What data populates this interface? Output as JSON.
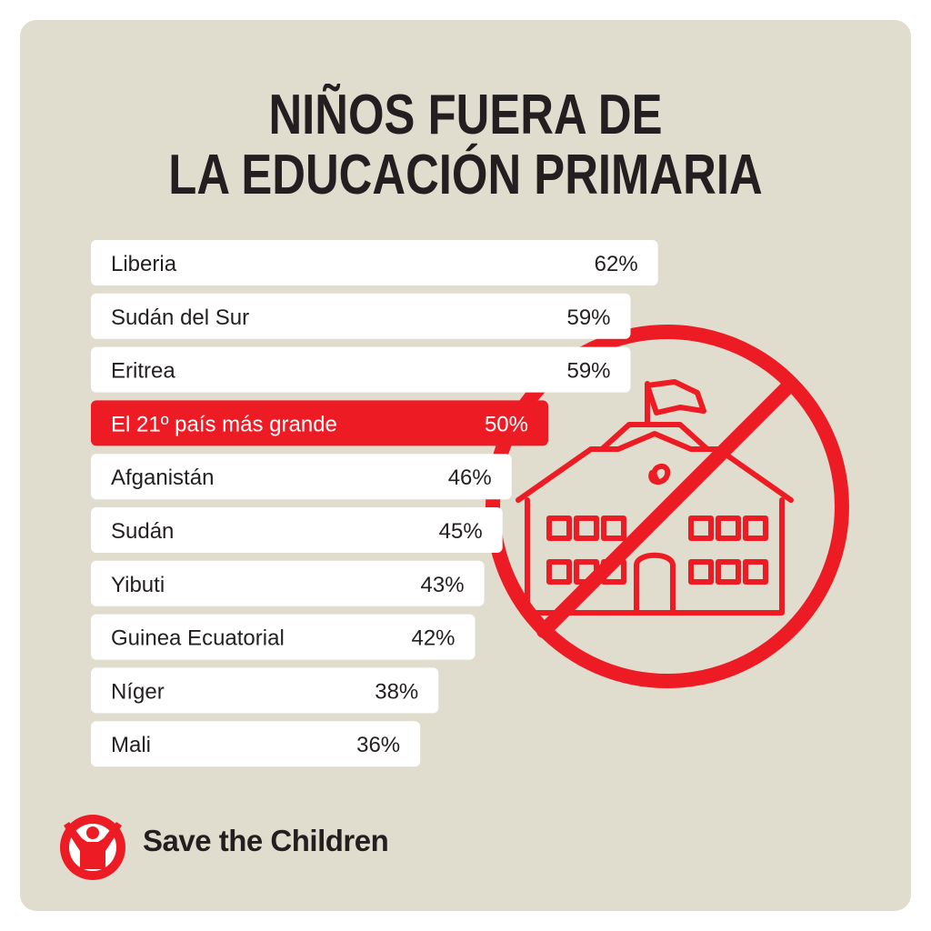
{
  "colors": {
    "background": "#e1ddce",
    "bar": "#ffffff",
    "highlight": "#ed1c24",
    "text": "#231f20",
    "highlight_text": "#ffffff"
  },
  "icon": "no-school-icon",
  "logo": {
    "icon": "save-the-children-logo-icon",
    "text": "Save the Children"
  },
  "chart_data": {
    "type": "bar",
    "orientation": "horizontal",
    "title_lines": [
      "NIÑOS FUERA DE",
      "LA EDUCACIÓN PRIMARIA"
    ],
    "categories": [
      "Liberia",
      "Sudán del Sur",
      "Eritrea",
      "El 21º país más grande",
      "Afganistán",
      "Sudán",
      "Yibuti",
      "Guinea Ecuatorial",
      "Níger",
      "Mali"
    ],
    "values": [
      62,
      59,
      59,
      50,
      46,
      45,
      43,
      42,
      38,
      36
    ],
    "value_labels": [
      "62%",
      "59%",
      "59%",
      "50%",
      "46%",
      "45%",
      "43%",
      "42%",
      "38%",
      "36%"
    ],
    "highlight_index": 3,
    "unit": "%"
  }
}
